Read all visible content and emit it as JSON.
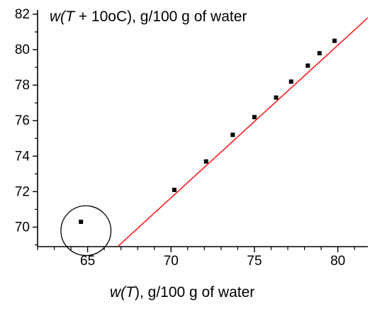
{
  "chart_data": {
    "type": "scatter",
    "title": "",
    "xlabel_parts": [
      "w(",
      "T",
      "), g/100 g of water"
    ],
    "ylabel_parts": [
      "w(",
      "T",
      " + 10oC), g/100 g of water"
    ],
    "xlim": [
      62.0,
      81.8
    ],
    "ylim": [
      68.9,
      82.0
    ],
    "x_ticks": [
      65,
      70,
      75,
      80
    ],
    "y_ticks": [
      70,
      72,
      74,
      76,
      78,
      80,
      82
    ],
    "series": [
      {
        "type": "points",
        "x": [
          64.6,
          70.2,
          72.1,
          73.7,
          75.0,
          76.3,
          77.2,
          78.2,
          78.9,
          79.8
        ],
        "y": [
          70.3,
          72.1,
          73.7,
          75.2,
          76.2,
          77.3,
          78.2,
          79.1,
          79.8,
          80.5
        ]
      },
      {
        "type": "fit-line",
        "x": [
          66.8,
          81.8
        ],
        "y": [
          68.9,
          81.8
        ],
        "color": "#ff0000"
      }
    ],
    "annotations": [
      {
        "type": "ellipse",
        "center_x": 64.9,
        "center_y": 69.8,
        "radius_x": 1.5,
        "radius_y": 1.4
      }
    ],
    "colors": {
      "points": "#000000",
      "fit_line": "#ff0000",
      "axes": "#000000"
    },
    "grid": false,
    "legend": "none"
  }
}
